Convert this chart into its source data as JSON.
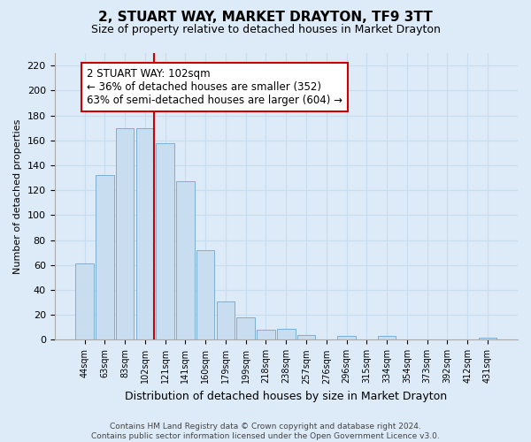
{
  "title": "2, STUART WAY, MARKET DRAYTON, TF9 3TT",
  "subtitle": "Size of property relative to detached houses in Market Drayton",
  "xlabel": "Distribution of detached houses by size in Market Drayton",
  "ylabel": "Number of detached properties",
  "bar_labels": [
    "44sqm",
    "63sqm",
    "83sqm",
    "102sqm",
    "121sqm",
    "141sqm",
    "160sqm",
    "179sqm",
    "199sqm",
    "218sqm",
    "238sqm",
    "257sqm",
    "276sqm",
    "296sqm",
    "315sqm",
    "334sqm",
    "354sqm",
    "373sqm",
    "392sqm",
    "412sqm",
    "431sqm"
  ],
  "bar_values": [
    61,
    132,
    170,
    170,
    158,
    127,
    72,
    31,
    18,
    8,
    9,
    4,
    0,
    3,
    0,
    3,
    0,
    0,
    0,
    0,
    2
  ],
  "bar_color": "#c8ddf0",
  "bar_edge_color": "#7bafd4",
  "vline_color": "#cc0000",
  "ylim": [
    0,
    230
  ],
  "yticks": [
    0,
    20,
    40,
    60,
    80,
    100,
    120,
    140,
    160,
    180,
    200,
    220
  ],
  "annotation_title": "2 STUART WAY: 102sqm",
  "annotation_line1": "← 36% of detached houses are smaller (352)",
  "annotation_line2": "63% of semi-detached houses are larger (604) →",
  "annotation_box_facecolor": "#ffffff",
  "annotation_box_edgecolor": "#cc0000",
  "footer_line1": "Contains HM Land Registry data © Crown copyright and database right 2024.",
  "footer_line2": "Contains public sector information licensed under the Open Government Licence v3.0.",
  "grid_color": "#c8ddf0",
  "background_color": "#ddeaf7",
  "title_fontsize": 11,
  "subtitle_fontsize": 9
}
